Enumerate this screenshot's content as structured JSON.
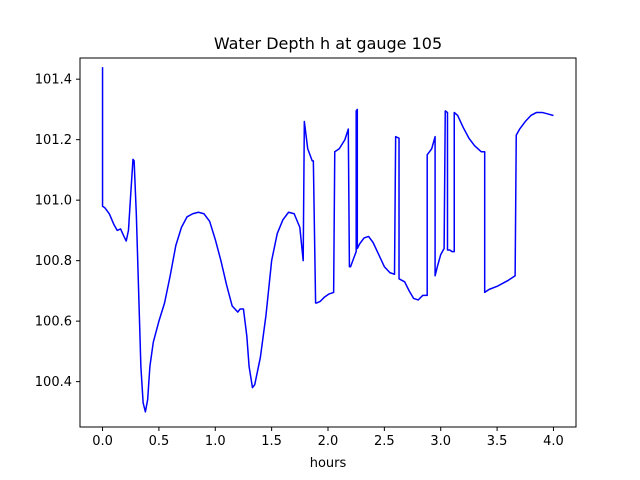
{
  "chart_data": {
    "type": "line",
    "title": "Water Depth h at gauge 105",
    "xlabel": "hours",
    "ylabel": "",
    "xlim": [
      -0.2,
      4.2
    ],
    "ylim": [
      100.25,
      101.47
    ],
    "xticks": [
      0.0,
      0.5,
      1.0,
      1.5,
      2.0,
      2.5,
      3.0,
      3.5,
      4.0
    ],
    "xtick_labels": [
      "0.0",
      "0.5",
      "1.0",
      "1.5",
      "2.0",
      "2.5",
      "3.0",
      "3.5",
      "4.0"
    ],
    "yticks": [
      100.4,
      100.6,
      100.8,
      101.0,
      101.2,
      101.4
    ],
    "ytick_labels": [
      "100.4",
      "100.6",
      "100.8",
      "101.0",
      "101.2",
      "101.4"
    ],
    "grid": false,
    "series": [
      {
        "color": "#0000ff",
        "x": [
          0.0,
          0.0,
          0.02,
          0.06,
          0.1,
          0.13,
          0.16,
          0.19,
          0.21,
          0.23,
          0.25,
          0.27,
          0.28,
          0.3,
          0.32,
          0.34,
          0.36,
          0.38,
          0.4,
          0.42,
          0.45,
          0.5,
          0.55,
          0.6,
          0.65,
          0.7,
          0.75,
          0.8,
          0.85,
          0.9,
          0.95,
          1.0,
          1.05,
          1.1,
          1.15,
          1.2,
          1.22,
          1.25,
          1.28,
          1.3,
          1.33,
          1.35,
          1.4,
          1.45,
          1.5,
          1.55,
          1.6,
          1.65,
          1.7,
          1.75,
          1.78,
          1.79,
          1.82,
          1.86,
          1.87,
          1.89,
          1.9,
          1.93,
          1.97,
          2.01,
          2.05,
          2.06,
          2.1,
          2.15,
          2.18,
          2.19,
          2.2,
          2.25,
          2.25,
          2.26,
          2.26,
          2.28,
          2.32,
          2.36,
          2.4,
          2.45,
          2.5,
          2.55,
          2.59,
          2.6,
          2.6,
          2.63,
          2.63,
          2.68,
          2.72,
          2.76,
          2.8,
          2.84,
          2.88,
          2.88,
          2.92,
          2.95,
          2.95,
          2.97,
          3.0,
          3.03,
          3.04,
          3.04,
          3.06,
          3.06,
          3.08,
          3.1,
          3.12,
          3.12,
          3.15,
          3.2,
          3.25,
          3.3,
          3.36,
          3.39,
          3.39,
          3.43,
          3.5,
          3.55,
          3.6,
          3.66,
          3.67,
          3.7,
          3.75,
          3.8,
          3.85,
          3.9,
          3.95,
          4.0
        ],
        "y": [
          101.44,
          100.98,
          100.975,
          100.955,
          100.92,
          100.9,
          100.905,
          100.88,
          100.865,
          100.9,
          101.02,
          101.135,
          101.13,
          100.95,
          100.7,
          100.45,
          100.33,
          100.3,
          100.34,
          100.45,
          100.53,
          100.6,
          100.66,
          100.75,
          100.85,
          100.91,
          100.945,
          100.955,
          100.96,
          100.955,
          100.93,
          100.87,
          100.8,
          100.72,
          100.65,
          100.63,
          100.64,
          100.64,
          100.55,
          100.45,
          100.38,
          100.39,
          100.48,
          100.62,
          100.8,
          100.89,
          100.935,
          100.96,
          100.955,
          100.91,
          100.8,
          101.26,
          101.17,
          101.13,
          101.13,
          100.66,
          100.66,
          100.665,
          100.68,
          100.69,
          100.695,
          101.16,
          101.17,
          101.2,
          101.235,
          100.78,
          100.78,
          100.83,
          101.295,
          101.3,
          100.84,
          100.855,
          100.875,
          100.88,
          100.86,
          100.82,
          100.78,
          100.76,
          100.755,
          101.21,
          101.21,
          101.205,
          100.74,
          100.73,
          100.7,
          100.675,
          100.67,
          100.685,
          100.685,
          101.15,
          101.17,
          101.21,
          100.75,
          100.78,
          100.82,
          100.84,
          101.29,
          101.295,
          101.29,
          100.835,
          100.835,
          100.83,
          100.83,
          101.29,
          101.28,
          101.24,
          101.205,
          101.18,
          101.16,
          101.16,
          100.695,
          100.705,
          100.715,
          100.725,
          100.735,
          100.75,
          101.215,
          101.235,
          101.26,
          101.28,
          101.29,
          101.29,
          101.285,
          101.28
        ]
      }
    ]
  }
}
